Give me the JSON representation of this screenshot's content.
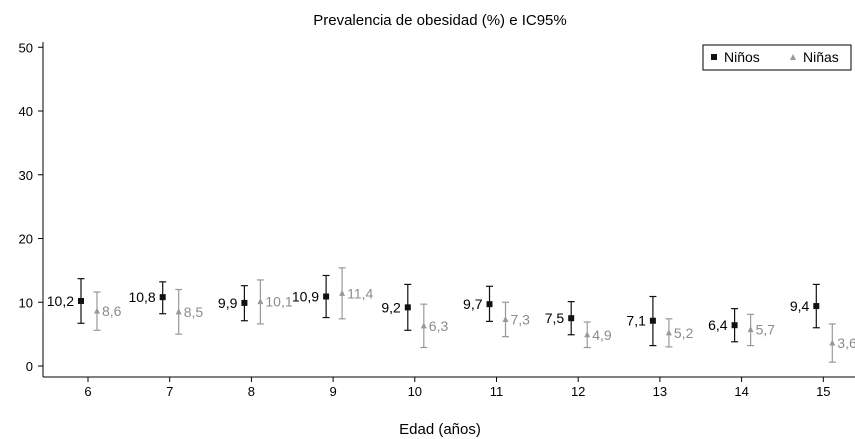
{
  "chart_data": {
    "type": "scatter",
    "title": "Prevalencia de obesidad (%) e IC95%",
    "xlabel": "Edad (años)",
    "ylabel": "",
    "x_categories": [
      "6",
      "7",
      "8",
      "9",
      "10",
      "11",
      "12",
      "13",
      "14",
      "15"
    ],
    "ylim": [
      0,
      50
    ],
    "yticks": [
      "0",
      "10",
      "20",
      "30",
      "40",
      "50"
    ],
    "grid": false,
    "legend_position": "top-right",
    "series": [
      {
        "name": "Niños",
        "color": "#111111",
        "marker": "square",
        "labels": [
          "10,2",
          "10,8",
          "9,9",
          "10,9",
          "9,2",
          "9,7",
          "7,5",
          "7,1",
          "6,4",
          "9,4"
        ],
        "values": [
          10.2,
          10.8,
          9.9,
          10.9,
          9.2,
          9.7,
          7.5,
          7.1,
          6.4,
          9.4
        ],
        "ci_low": [
          6.7,
          8.2,
          7.1,
          7.6,
          5.6,
          7.0,
          4.9,
          3.2,
          3.8,
          6.0
        ],
        "ci_high": [
          13.7,
          13.2,
          12.6,
          14.2,
          12.8,
          12.5,
          10.1,
          10.9,
          9.0,
          12.8
        ]
      },
      {
        "name": "Niñas",
        "color": "#999999",
        "marker": "triangle",
        "labels": [
          "8,6",
          "8,5",
          "10,1",
          "11,4",
          "6,3",
          "7,3",
          "4,9",
          "5,2",
          "5,7",
          "3,6"
        ],
        "values": [
          8.6,
          8.5,
          10.1,
          11.4,
          6.3,
          7.3,
          4.9,
          5.2,
          5.7,
          3.6
        ],
        "ci_low": [
          5.6,
          5.0,
          6.6,
          7.4,
          2.9,
          4.6,
          2.9,
          3.0,
          3.2,
          0.6
        ],
        "ci_high": [
          11.6,
          12.0,
          13.5,
          15.4,
          9.7,
          10.0,
          6.9,
          7.4,
          8.1,
          6.6
        ]
      }
    ]
  }
}
